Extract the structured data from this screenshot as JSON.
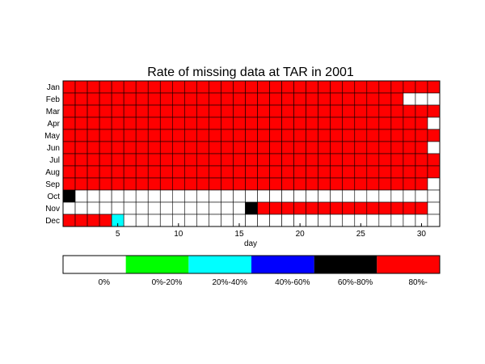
{
  "chart_data": {
    "type": "heatmap",
    "title": "Rate of missing data at TAR in 2001",
    "xlabel": "day",
    "ylabel": "",
    "x_ticks": [
      5,
      10,
      15,
      20,
      25,
      30
    ],
    "x_range": [
      1,
      31
    ],
    "months": [
      "Jan",
      "Feb",
      "Mar",
      "Apr",
      "May",
      "Jun",
      "Jul",
      "Aug",
      "Sep",
      "Oct",
      "Nov",
      "Dec"
    ],
    "days_in_month": [
      31,
      28,
      31,
      30,
      31,
      30,
      31,
      31,
      30,
      31,
      30,
      31
    ],
    "categories": [
      {
        "label": "0%",
        "color": "#ffffff"
      },
      {
        "label": "0%-20%",
        "color": "#00ff00"
      },
      {
        "label": "20%-40%",
        "color": "#00ffff"
      },
      {
        "label": "40%-60%",
        "color": "#0000ff"
      },
      {
        "label": "60%-80%",
        "color": "#000000"
      },
      {
        "label": "80%-",
        "color": "#ff0000"
      }
    ],
    "cells": [
      [
        5,
        5,
        5,
        5,
        5,
        5,
        5,
        5,
        5,
        5,
        5,
        5,
        5,
        5,
        5,
        5,
        5,
        5,
        5,
        5,
        5,
        5,
        5,
        5,
        5,
        5,
        5,
        5,
        5,
        5,
        5
      ],
      [
        5,
        5,
        5,
        5,
        5,
        5,
        5,
        5,
        5,
        5,
        5,
        5,
        5,
        5,
        5,
        5,
        5,
        5,
        5,
        5,
        5,
        5,
        5,
        5,
        5,
        5,
        5,
        5,
        0,
        0,
        0
      ],
      [
        5,
        5,
        5,
        5,
        5,
        5,
        5,
        5,
        5,
        5,
        5,
        5,
        5,
        5,
        5,
        5,
        5,
        5,
        5,
        5,
        5,
        5,
        5,
        5,
        5,
        5,
        5,
        5,
        5,
        5,
        5
      ],
      [
        5,
        5,
        5,
        5,
        5,
        5,
        5,
        5,
        5,
        5,
        5,
        5,
        5,
        5,
        5,
        5,
        5,
        5,
        5,
        5,
        5,
        5,
        5,
        5,
        5,
        5,
        5,
        5,
        5,
        5,
        0
      ],
      [
        5,
        5,
        5,
        5,
        5,
        5,
        5,
        5,
        5,
        5,
        5,
        5,
        5,
        5,
        5,
        5,
        5,
        5,
        5,
        5,
        5,
        5,
        5,
        5,
        5,
        5,
        5,
        5,
        5,
        5,
        5
      ],
      [
        5,
        5,
        5,
        5,
        5,
        5,
        5,
        5,
        5,
        5,
        5,
        5,
        5,
        5,
        5,
        5,
        5,
        5,
        5,
        5,
        5,
        5,
        5,
        5,
        5,
        5,
        5,
        5,
        5,
        5,
        0
      ],
      [
        5,
        5,
        5,
        5,
        5,
        5,
        5,
        5,
        5,
        5,
        5,
        5,
        5,
        5,
        5,
        5,
        5,
        5,
        5,
        5,
        5,
        5,
        5,
        5,
        5,
        5,
        5,
        5,
        5,
        5,
        5
      ],
      [
        5,
        5,
        5,
        5,
        5,
        5,
        5,
        5,
        5,
        5,
        5,
        5,
        5,
        5,
        5,
        5,
        5,
        5,
        5,
        5,
        5,
        5,
        5,
        5,
        5,
        5,
        5,
        5,
        5,
        5,
        5
      ],
      [
        5,
        5,
        5,
        5,
        5,
        5,
        5,
        5,
        5,
        5,
        5,
        5,
        5,
        5,
        5,
        5,
        5,
        5,
        5,
        5,
        5,
        5,
        5,
        5,
        5,
        5,
        5,
        5,
        5,
        5,
        0
      ],
      [
        4,
        0,
        0,
        0,
        0,
        0,
        0,
        0,
        0,
        0,
        0,
        0,
        0,
        0,
        0,
        0,
        0,
        0,
        0,
        0,
        0,
        0,
        0,
        0,
        0,
        0,
        0,
        0,
        0,
        0,
        0
      ],
      [
        0,
        0,
        0,
        0,
        0,
        0,
        0,
        0,
        0,
        0,
        0,
        0,
        0,
        0,
        0,
        4,
        5,
        5,
        5,
        5,
        5,
        5,
        5,
        5,
        5,
        5,
        5,
        5,
        5,
        5,
        0
      ],
      [
        5,
        5,
        5,
        5,
        2,
        0,
        0,
        0,
        0,
        0,
        0,
        0,
        0,
        0,
        0,
        0,
        0,
        0,
        0,
        0,
        0,
        0,
        0,
        0,
        0,
        0,
        0,
        0,
        0,
        0,
        0
      ]
    ]
  }
}
